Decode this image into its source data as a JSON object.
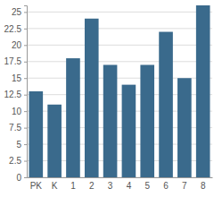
{
  "chart_data": {
    "type": "bar",
    "categories": [
      "PK",
      "K",
      "1",
      "2",
      "3",
      "4",
      "5",
      "6",
      "7",
      "8"
    ],
    "values": [
      13,
      11,
      18,
      24,
      17,
      14,
      17,
      22,
      15,
      26
    ],
    "color": "#3a6a8c",
    "ylim": [
      0,
      26
    ],
    "yticks": [
      0,
      2.5,
      5,
      7.5,
      10,
      12.5,
      15,
      17.5,
      20,
      22.5,
      25
    ],
    "grid": true
  }
}
